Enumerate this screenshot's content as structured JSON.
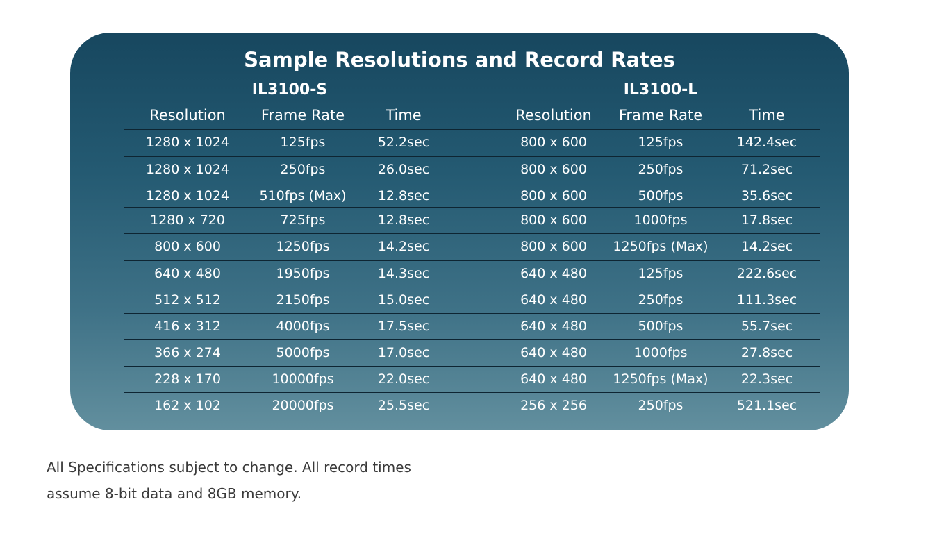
{
  "title": "Sample Resolutions and Record Rates",
  "models": {
    "left": "IL3100-S",
    "right": "IL3100-L"
  },
  "headers": [
    "Resolution",
    "Frame Rate",
    "Time",
    "Resolution",
    "Frame Rate",
    "Time"
  ],
  "rows": [
    [
      "1280 x 1024",
      "125fps",
      "52.2sec",
      "800 x 600",
      "125fps",
      "142.4sec"
    ],
    [
      "1280 x 1024",
      "250fps",
      "26.0sec",
      "800 x 600",
      "250fps",
      "71.2sec"
    ],
    [
      "1280 x 1024",
      "510fps (Max)",
      "12.8sec",
      "800 x 600",
      "500fps",
      "35.6sec"
    ],
    [
      "1280 x 720",
      "725fps",
      "12.8sec",
      "800 x 600",
      "1000fps",
      "17.8sec"
    ],
    [
      "800 x 600",
      "1250fps",
      "14.2sec",
      "800 x 600",
      "1250fps (Max)",
      "14.2sec"
    ],
    [
      "640 x 480",
      "1950fps",
      "14.3sec",
      "640 x 480",
      "125fps",
      "222.6sec"
    ],
    [
      "512 x 512",
      "2150fps",
      "15.0sec",
      "640 x 480",
      "250fps",
      "111.3sec"
    ],
    [
      "416 x 312",
      "4000fps",
      "17.5sec",
      "640 x 480",
      "500fps",
      "55.7sec"
    ],
    [
      "366 x 274",
      "5000fps",
      "17.0sec",
      "640 x 480",
      "1000fps",
      "27.8sec"
    ],
    [
      "228 x 170",
      "10000fps",
      "22.0sec",
      "640 x 480",
      "1250fps (Max)",
      "22.3sec"
    ],
    [
      "162 x 102",
      "20000fps",
      "25.5sec",
      "256 x 256",
      "250fps",
      "521.1sec"
    ]
  ],
  "footnote": {
    "line1": "All Specifications subject to change. All record times",
    "line2": "assume 8-bit data and 8GB memory."
  },
  "colors": {
    "panel_top": "#17475f",
    "panel_bottom": "#628f9e",
    "row_divider": "#0e2532",
    "text": "#ffffff",
    "footnote_text": "#3a3a3a"
  }
}
